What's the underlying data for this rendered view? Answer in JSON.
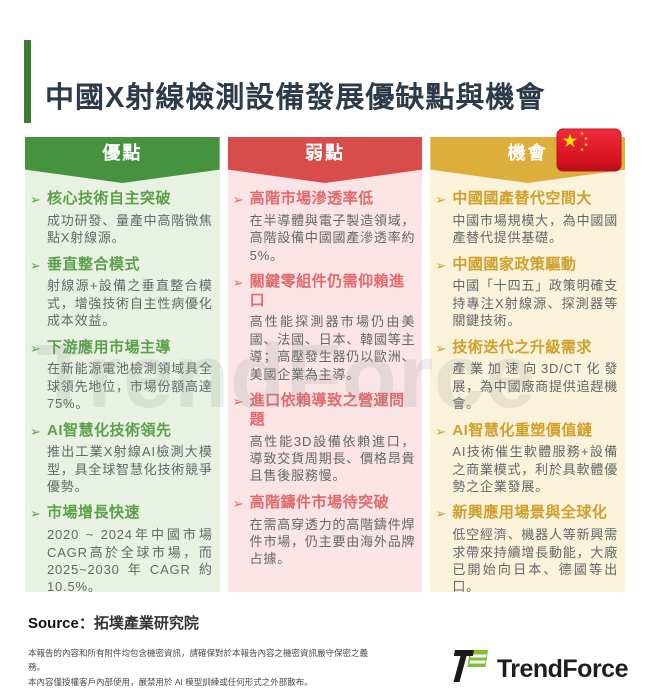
{
  "page": {
    "title": "中國X射線檢測設備發展優缺點與機會"
  },
  "colors": {
    "accent_green": "#47923f",
    "accent_red": "#d94c4c",
    "accent_yellow": "#ddae3c",
    "brand_green": "#7cbf31",
    "title_navy": "#2c3a49"
  },
  "columns": [
    {
      "id": "advantages",
      "header": "優點",
      "theme": {
        "banner": "#47923f",
        "bg": "#e9f2e2",
        "heading": "#5ba14b"
      },
      "items": [
        {
          "heading": "核心技術自主突破",
          "body": "成功研發、量產中高階微焦點X射線源。"
        },
        {
          "heading": "垂直整合模式",
          "body": "射線源+設備之垂直整合模式，增強技術自主性病優化成本效益。"
        },
        {
          "heading": "下游應用市場主導",
          "body": "在新能源電池檢測領域具全球領先地位，市場份額高達75%。"
        },
        {
          "heading": "AI智慧化技術領先",
          "body": "推出工業X射線AI檢測大模型，具全球智慧化技術競爭優勢。"
        },
        {
          "heading": "市場增長快速",
          "body": "2020 ~ 2024年中國市場CAGR高於全球市場，而2025~2030年CAGR約10.5%。"
        }
      ]
    },
    {
      "id": "weaknesses",
      "header": "弱點",
      "theme": {
        "banner": "#d94c4c",
        "bg": "#fbe4e6",
        "heading": "#e06a6c"
      },
      "items": [
        {
          "heading": "高階市場滲透率低",
          "body": "在半導體與電子製造領域，高階設備中國國產滲透率約5%。"
        },
        {
          "heading": "關鍵零組件仍需仰賴進口",
          "body": "高性能探測器市場仍由美國、法國、日本、韓國等主導；高壓發生器仍以歐洲、美國企業為主導。"
        },
        {
          "heading": "進口依賴導致之營運問題",
          "body": "高性能3D設備依賴進口，導致交貨周期長、價格昂貴且售後服務慢。"
        },
        {
          "heading": "高階鑄件市場待突破",
          "body": "在需高穿透力的高階鑄件焊件市場，仍主要由海外品牌占據。"
        }
      ]
    },
    {
      "id": "opportunities",
      "header": "機會",
      "theme": {
        "banner": "#ddae3c",
        "bg": "#faf2da",
        "heading": "#cfa02b"
      },
      "items": [
        {
          "heading": "中國國產替代空間大",
          "body": "中國市場規模大，為中國國產替代提供基礎。"
        },
        {
          "heading": "中國國家政策驅動",
          "body": "中國「十四五」政策明確支持專注X射線源、探測器等關鍵技術。"
        },
        {
          "heading": "技術迭代之升級需求",
          "body": "產業加速向3D/CT化發展，為中國廠商提供追趕機會。"
        },
        {
          "heading": "AI智慧化重塑價值鏈",
          "body": "AI技術催生軟體服務+設備之商業模式，利於具軟體優勢之企業發展。"
        },
        {
          "heading": "新興應用場景與全球化",
          "body": "低空經濟、機器人等新興需求帶來持續增長動能，大廠已開始向日本、德國等出口。"
        }
      ]
    }
  ],
  "watermark": {
    "text": "TrendForce"
  },
  "footer": {
    "source_label": "Source",
    "source_value": "：拓墣產業研究院",
    "disclaimer_line1": "本報告的內容和所有附件均包含機密資訊，請確保對於本報告內容之機密資訊嚴守保密之義務。",
    "disclaimer_line2": "本內容僅授權客戶內部使用，嚴禁用於 AI 模型訓練或任何形式之外部散布。",
    "logo_text": "TrendForce"
  }
}
